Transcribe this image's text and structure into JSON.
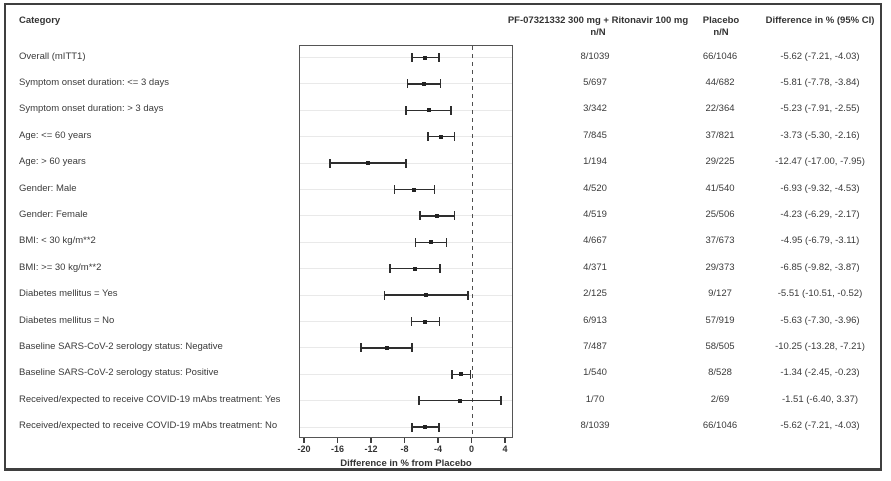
{
  "header": {
    "category": "Category",
    "treatment_line1": "PF-07321332 300 mg + Ritonavir 100 mg",
    "treatment_line2": "n/N",
    "placebo_line1": "Placebo",
    "placebo_line2": "n/N",
    "difference": "Difference in % (95% CI)"
  },
  "chart_data": {
    "type": "scatter",
    "subtype": "forest-plot",
    "title": "",
    "xlabel": "Difference in % from Placebo",
    "ylabel": "",
    "xlim": [
      -20.6,
      5.0
    ],
    "xticks": [
      -20,
      -16,
      -12,
      -8,
      -4,
      0,
      4
    ],
    "reference_line_x": 0,
    "grid": "light horizontal line per row",
    "legend": "none",
    "rows": [
      {
        "category": "Overall (mITT1)",
        "treatment_nN": "8/1039",
        "placebo_nN": "66/1046",
        "diff_text": "-5.62 (-7.21, -4.03)",
        "estimate": -5.62,
        "ci_low": -7.21,
        "ci_high": -4.03
      },
      {
        "category": "Symptom onset duration: <= 3 days",
        "treatment_nN": "5/697",
        "placebo_nN": "44/682",
        "diff_text": "-5.81 (-7.78, -3.84)",
        "estimate": -5.81,
        "ci_low": -7.78,
        "ci_high": -3.84
      },
      {
        "category": "Symptom onset duration: > 3 days",
        "treatment_nN": "3/342",
        "placebo_nN": "22/364",
        "diff_text": "-5.23 (-7.91, -2.55)",
        "estimate": -5.23,
        "ci_low": -7.91,
        "ci_high": -2.55
      },
      {
        "category": "Age: <= 60 years",
        "treatment_nN": "7/845",
        "placebo_nN": "37/821",
        "diff_text": "-3.73 (-5.30, -2.16)",
        "estimate": -3.73,
        "ci_low": -5.3,
        "ci_high": -2.16
      },
      {
        "category": "Age: > 60 years",
        "treatment_nN": "1/194",
        "placebo_nN": "29/225",
        "diff_text": "-12.47 (-17.00, -7.95)",
        "estimate": -12.47,
        "ci_low": -17.0,
        "ci_high": -7.95
      },
      {
        "category": "Gender: Male",
        "treatment_nN": "4/520",
        "placebo_nN": "41/540",
        "diff_text": "-6.93 (-9.32, -4.53)",
        "estimate": -6.93,
        "ci_low": -9.32,
        "ci_high": -4.53
      },
      {
        "category": "Gender: Female",
        "treatment_nN": "4/519",
        "placebo_nN": "25/506",
        "diff_text": "-4.23 (-6.29, -2.17)",
        "estimate": -4.23,
        "ci_low": -6.29,
        "ci_high": -2.17
      },
      {
        "category": "BMI: < 30 kg/m**2",
        "treatment_nN": "4/667",
        "placebo_nN": "37/673",
        "diff_text": "-4.95 (-6.79, -3.11)",
        "estimate": -4.95,
        "ci_low": -6.79,
        "ci_high": -3.11
      },
      {
        "category": "BMI: >= 30 kg/m**2",
        "treatment_nN": "4/371",
        "placebo_nN": "29/373",
        "diff_text": "-6.85 (-9.82, -3.87)",
        "estimate": -6.85,
        "ci_low": -9.82,
        "ci_high": -3.87
      },
      {
        "category": "Diabetes mellitus = Yes",
        "treatment_nN": "2/125",
        "placebo_nN": "9/127",
        "diff_text": "-5.51 (-10.51, -0.52)",
        "estimate": -5.51,
        "ci_low": -10.51,
        "ci_high": -0.52
      },
      {
        "category": "Diabetes mellitus = No",
        "treatment_nN": "6/913",
        "placebo_nN": "57/919",
        "diff_text": "-5.63 (-7.30, -3.96)",
        "estimate": -5.63,
        "ci_low": -7.3,
        "ci_high": -3.96
      },
      {
        "category": "Baseline SARS-CoV-2 serology status: Negative",
        "treatment_nN": "7/487",
        "placebo_nN": "58/505",
        "diff_text": "-10.25 (-13.28, -7.21)",
        "estimate": -10.25,
        "ci_low": -13.28,
        "ci_high": -7.21
      },
      {
        "category": "Baseline SARS-CoV-2 serology status: Positive",
        "treatment_nN": "1/540",
        "placebo_nN": "8/528",
        "diff_text": "-1.34 (-2.45, -0.23)",
        "estimate": -1.34,
        "ci_low": -2.45,
        "ci_high": -0.23
      },
      {
        "category": "Received/expected to receive COVID-19 mAbs treatment: Yes",
        "treatment_nN": "1/70",
        "placebo_nN": "2/69",
        "diff_text": "-1.51 (-6.40, 3.37)",
        "estimate": -1.51,
        "ci_low": -6.4,
        "ci_high": 3.37
      },
      {
        "category": "Received/expected to receive COVID-19 mAbs treatment: No",
        "treatment_nN": "8/1039",
        "placebo_nN": "66/1046",
        "diff_text": "-5.62 (-7.21, -4.03)",
        "estimate": -5.62,
        "ci_low": -7.21,
        "ci_high": -4.03
      }
    ]
  },
  "colors": {
    "background": "#ffffff",
    "text": "#333333",
    "frame_border": "#3f3f3f",
    "plot_box_border": "#555555",
    "gridline": "#e9e9e9",
    "marker_and_ci": "#2e2e2e",
    "reference_line": "#4f4f4f"
  }
}
